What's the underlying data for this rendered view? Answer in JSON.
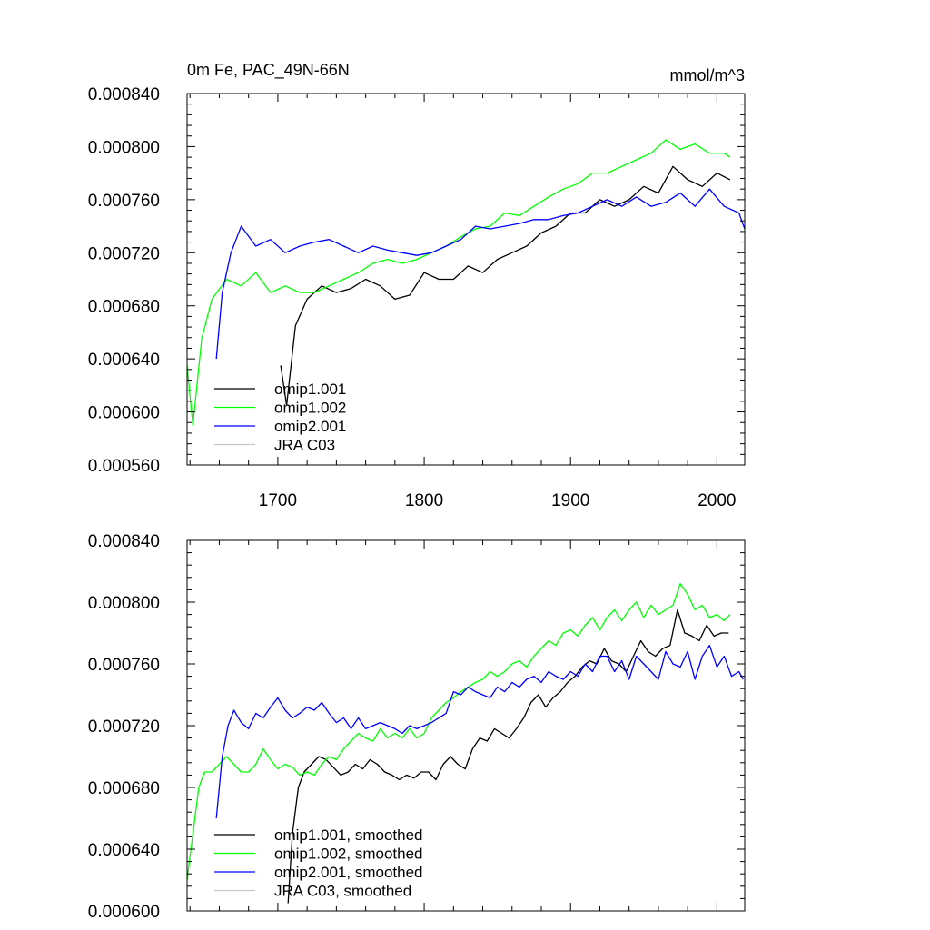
{
  "chart_data": [
    {
      "type": "line",
      "title": "0m Fe, PAC_49N-66N",
      "units": "mmol/m^3",
      "xlim": [
        1638,
        2019
      ],
      "ylim": [
        0.00056,
        0.00084
      ],
      "xticks": [
        1700,
        1800,
        1900,
        2000
      ],
      "xtick_labels": [
        "1700",
        "1800",
        "1900",
        "2000"
      ],
      "yticks": [
        0.00056,
        0.0006,
        0.00064,
        0.00068,
        0.00072,
        0.00076,
        0.0008,
        0.00084
      ],
      "ytick_labels": [
        "0.000560",
        "0.000600",
        "0.000640",
        "0.000680",
        "0.000720",
        "0.000760",
        "0.000800",
        "0.000840"
      ],
      "legend_position": "lower-left",
      "series": [
        {
          "name": "omip1.001",
          "color": "#000000",
          "x": [
            1702,
            1706,
            1712,
            1720,
            1730,
            1740,
            1750,
            1760,
            1770,
            1780,
            1790,
            1800,
            1810,
            1820,
            1830,
            1840,
            1850,
            1860,
            1870,
            1880,
            1890,
            1900,
            1910,
            1920,
            1930,
            1940,
            1950,
            1960,
            1970,
            1980,
            1990,
            2000,
            2009
          ],
          "y": [
            0.000635,
            0.000605,
            0.000665,
            0.000685,
            0.000695,
            0.00069,
            0.000693,
            0.0007,
            0.000695,
            0.000685,
            0.000688,
            0.000705,
            0.0007,
            0.0007,
            0.00071,
            0.000705,
            0.000715,
            0.00072,
            0.000725,
            0.000735,
            0.00074,
            0.00075,
            0.00075,
            0.00076,
            0.000755,
            0.00076,
            0.00077,
            0.000765,
            0.000785,
            0.000775,
            0.00077,
            0.00078,
            0.000775
          ]
        },
        {
          "name": "omip1.002",
          "color": "#00ff00",
          "x": [
            1638,
            1642,
            1648,
            1655,
            1665,
            1675,
            1685,
            1695,
            1705,
            1715,
            1725,
            1735,
            1745,
            1755,
            1765,
            1775,
            1785,
            1795,
            1805,
            1815,
            1825,
            1835,
            1845,
            1855,
            1865,
            1875,
            1885,
            1895,
            1905,
            1915,
            1925,
            1935,
            1945,
            1955,
            1965,
            1975,
            1985,
            1995,
            2005,
            2009
          ],
          "y": [
            0.000635,
            0.00059,
            0.000655,
            0.000685,
            0.0007,
            0.000695,
            0.000705,
            0.00069,
            0.000695,
            0.00069,
            0.00069,
            0.000695,
            0.0007,
            0.000705,
            0.000712,
            0.000715,
            0.000712,
            0.000715,
            0.00072,
            0.000725,
            0.000732,
            0.000738,
            0.00074,
            0.00075,
            0.000748,
            0.000755,
            0.000762,
            0.000768,
            0.000772,
            0.00078,
            0.00078,
            0.000785,
            0.00079,
            0.000795,
            0.000805,
            0.000798,
            0.000802,
            0.000795,
            0.000795,
            0.000792
          ]
        },
        {
          "name": "omip2.001",
          "color": "#0000ff",
          "x": [
            1658,
            1662,
            1668,
            1675,
            1685,
            1695,
            1705,
            1715,
            1725,
            1735,
            1745,
            1755,
            1765,
            1775,
            1785,
            1795,
            1805,
            1815,
            1825,
            1835,
            1845,
            1855,
            1865,
            1875,
            1885,
            1895,
            1905,
            1915,
            1925,
            1935,
            1945,
            1955,
            1965,
            1975,
            1985,
            1995,
            2005,
            2015,
            2019
          ],
          "y": [
            0.00064,
            0.00069,
            0.00072,
            0.00074,
            0.000725,
            0.00073,
            0.00072,
            0.000725,
            0.000728,
            0.00073,
            0.000725,
            0.00072,
            0.000725,
            0.000722,
            0.00072,
            0.000718,
            0.00072,
            0.000725,
            0.00073,
            0.00074,
            0.000738,
            0.00074,
            0.000742,
            0.000745,
            0.000745,
            0.000748,
            0.00075,
            0.000755,
            0.00076,
            0.000755,
            0.000762,
            0.000755,
            0.000758,
            0.000765,
            0.000755,
            0.000768,
            0.000755,
            0.00075,
            0.000738
          ]
        },
        {
          "name": "JRA C03",
          "color": "#c8c8c8",
          "x": [],
          "y": []
        }
      ]
    },
    {
      "type": "line",
      "title": "",
      "units": "",
      "xlim": [
        1638,
        2019
      ],
      "ylim": [
        0.0006,
        0.00084
      ],
      "xticks": [
        1700,
        1800,
        1900,
        2000
      ],
      "xtick_labels": [],
      "yticks": [
        0.0006,
        0.00064,
        0.00068,
        0.00072,
        0.00076,
        0.0008,
        0.00084
      ],
      "ytick_labels": [
        "0.000600",
        "0.000640",
        "0.000680",
        "0.000720",
        "0.000760",
        "0.000800",
        "0.000840"
      ],
      "legend_position": "lower-left",
      "series": [
        {
          "name": "omip1.001, smoothed",
          "color": "#000000",
          "x": [
            1707,
            1710,
            1714,
            1718,
            1723,
            1728,
            1733,
            1738,
            1743,
            1748,
            1753,
            1758,
            1763,
            1768,
            1773,
            1778,
            1783,
            1788,
            1793,
            1798,
            1803,
            1808,
            1813,
            1818,
            1823,
            1828,
            1833,
            1838,
            1843,
            1848,
            1853,
            1858,
            1863,
            1868,
            1873,
            1878,
            1883,
            1888,
            1893,
            1898,
            1903,
            1908,
            1913,
            1918,
            1923,
            1928,
            1933,
            1938,
            1943,
            1948,
            1953,
            1958,
            1963,
            1968,
            1973,
            1978,
            1983,
            1988,
            1993,
            1998,
            2003,
            2008
          ],
          "y": [
            0.000605,
            0.00065,
            0.00068,
            0.00069,
            0.000695,
            0.0007,
            0.000698,
            0.000693,
            0.000688,
            0.00069,
            0.000695,
            0.000692,
            0.000698,
            0.000695,
            0.00069,
            0.000688,
            0.000685,
            0.000688,
            0.000686,
            0.00069,
            0.00069,
            0.000685,
            0.000695,
            0.0007,
            0.000695,
            0.000692,
            0.000705,
            0.000712,
            0.00071,
            0.000718,
            0.000715,
            0.000712,
            0.000718,
            0.000725,
            0.000735,
            0.00074,
            0.000732,
            0.000738,
            0.000742,
            0.000748,
            0.000752,
            0.000758,
            0.000762,
            0.00076,
            0.00077,
            0.000762,
            0.00076,
            0.000755,
            0.000765,
            0.000775,
            0.000768,
            0.000765,
            0.00077,
            0.000772,
            0.000795,
            0.00078,
            0.000778,
            0.000775,
            0.000785,
            0.000778,
            0.00078,
            0.00078
          ]
        },
        {
          "name": "omip1.002, smoothed",
          "color": "#00ff00",
          "x": [
            1638,
            1642,
            1646,
            1650,
            1655,
            1660,
            1665,
            1670,
            1675,
            1680,
            1685,
            1690,
            1695,
            1700,
            1705,
            1710,
            1715,
            1720,
            1725,
            1730,
            1735,
            1740,
            1745,
            1750,
            1755,
            1760,
            1765,
            1770,
            1775,
            1780,
            1785,
            1790,
            1795,
            1800,
            1805,
            1810,
            1815,
            1820,
            1825,
            1830,
            1835,
            1840,
            1845,
            1850,
            1855,
            1860,
            1865,
            1870,
            1875,
            1880,
            1885,
            1890,
            1895,
            1900,
            1905,
            1910,
            1915,
            1920,
            1925,
            1930,
            1935,
            1940,
            1945,
            1950,
            1955,
            1960,
            1965,
            1970,
            1975,
            1980,
            1985,
            1990,
            1995,
            2000,
            2005,
            2009
          ],
          "y": [
            0.00062,
            0.00065,
            0.00068,
            0.00069,
            0.00069,
            0.000695,
            0.0007,
            0.000695,
            0.00069,
            0.00069,
            0.000695,
            0.000705,
            0.000698,
            0.000692,
            0.000695,
            0.000693,
            0.000688,
            0.00069,
            0.000688,
            0.000695,
            0.0007,
            0.000698,
            0.000705,
            0.00071,
            0.000715,
            0.000712,
            0.00071,
            0.000718,
            0.000712,
            0.000715,
            0.000712,
            0.000718,
            0.000712,
            0.000715,
            0.000725,
            0.00073,
            0.000735,
            0.000738,
            0.000742,
            0.000745,
            0.000748,
            0.00075,
            0.000755,
            0.000752,
            0.000755,
            0.00076,
            0.000762,
            0.000758,
            0.000765,
            0.00077,
            0.000775,
            0.000772,
            0.00078,
            0.000782,
            0.000778,
            0.000785,
            0.00079,
            0.000782,
            0.00079,
            0.000795,
            0.000788,
            0.000795,
            0.0008,
            0.00079,
            0.000798,
            0.000792,
            0.000795,
            0.000798,
            0.000812,
            0.000805,
            0.000795,
            0.000798,
            0.00079,
            0.000792,
            0.000788,
            0.000792
          ]
        },
        {
          "name": "omip2.001, smoothed",
          "color": "#0000ff",
          "x": [
            1658,
            1662,
            1666,
            1670,
            1675,
            1680,
            1685,
            1690,
            1695,
            1700,
            1705,
            1710,
            1715,
            1720,
            1725,
            1730,
            1735,
            1740,
            1745,
            1750,
            1755,
            1760,
            1765,
            1770,
            1775,
            1780,
            1785,
            1790,
            1795,
            1800,
            1805,
            1810,
            1815,
            1820,
            1825,
            1830,
            1835,
            1840,
            1845,
            1850,
            1855,
            1860,
            1865,
            1870,
            1875,
            1880,
            1885,
            1890,
            1895,
            1900,
            1905,
            1910,
            1915,
            1920,
            1925,
            1930,
            1935,
            1940,
            1945,
            1950,
            1955,
            1960,
            1965,
            1970,
            1975,
            1980,
            1985,
            1990,
            1995,
            2000,
            2005,
            2010,
            2015,
            2018
          ],
          "y": [
            0.00066,
            0.0007,
            0.00072,
            0.00073,
            0.000722,
            0.000718,
            0.000728,
            0.000725,
            0.000732,
            0.000738,
            0.00073,
            0.000725,
            0.000728,
            0.000732,
            0.00073,
            0.000735,
            0.000728,
            0.000722,
            0.000725,
            0.000718,
            0.000725,
            0.000718,
            0.00072,
            0.000722,
            0.00072,
            0.000718,
            0.000715,
            0.00072,
            0.000718,
            0.00072,
            0.000722,
            0.000725,
            0.000728,
            0.000742,
            0.00074,
            0.000745,
            0.000742,
            0.00074,
            0.000738,
            0.000745,
            0.000742,
            0.000748,
            0.000745,
            0.00075,
            0.000752,
            0.000748,
            0.000755,
            0.000752,
            0.00075,
            0.000755,
            0.000752,
            0.00076,
            0.000755,
            0.000765,
            0.000765,
            0.000755,
            0.000762,
            0.00075,
            0.000765,
            0.00076,
            0.000755,
            0.00075,
            0.000768,
            0.00076,
            0.000758,
            0.000768,
            0.00075,
            0.000765,
            0.000772,
            0.000758,
            0.000765,
            0.000752,
            0.000755,
            0.00075
          ]
        },
        {
          "name": "JRA C03, smoothed",
          "color": "#c8c8c8",
          "x": [],
          "y": []
        }
      ]
    }
  ]
}
